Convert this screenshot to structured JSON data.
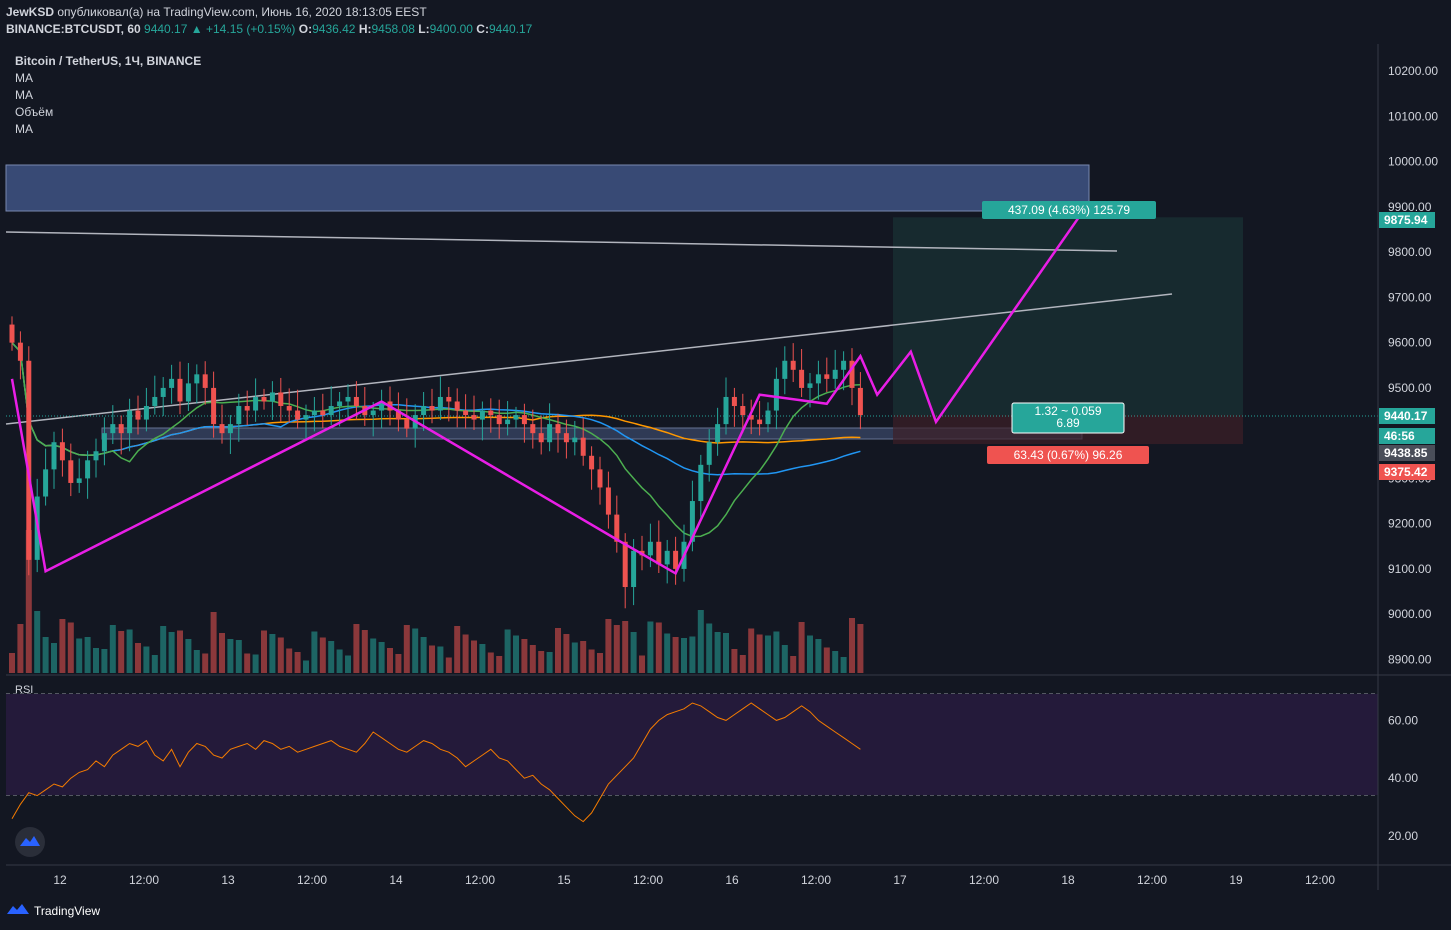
{
  "header": {
    "author": "JewKSD",
    "published_text": "опубликовал(а) на TradingView.com, Июнь 16, 2020 18:13:05 EEST",
    "symbol": "BINANCE:BTCUSDT, 60",
    "last": "9440.17",
    "change": "+14.15 (+0.15%)",
    "o_label": "O:",
    "o": "9436.42",
    "h_label": "H:",
    "h": "9458.08",
    "l_label": "L:",
    "l": "9400.00",
    "c_label": "C:",
    "c": "9440.17"
  },
  "legend": {
    "title": "Bitcoin / TetherUS, 1Ч, BINANCE",
    "items": [
      "MA",
      "MA",
      "Объём",
      "MA"
    ]
  },
  "rsi_label": "RSI",
  "footer_brand": "TradingView",
  "colors": {
    "background": "#131722",
    "up": "#26a69a",
    "down": "#ef5350",
    "ma_orange": "#ff9800",
    "ma_blue": "#2196f3",
    "ma_green": "#4caf50",
    "pattern": "#e91ee6",
    "rsi_line": "#f57c00",
    "rsi_band": "#241a3a",
    "zone": "#3a4d7a"
  },
  "chart_data": {
    "type": "candlestick",
    "price_axis": {
      "ticks": [
        "10200.00",
        "10100.00",
        "10000.00",
        "9900.00",
        "9800.00",
        "9700.00",
        "9600.00",
        "9500.00",
        "9400.00",
        "9300.00",
        "9200.00",
        "9100.00",
        "9000.00",
        "8900.00"
      ],
      "ylim": [
        8870,
        10260
      ]
    },
    "price_labels": [
      {
        "text": "9875.94",
        "kind": "target"
      },
      {
        "text": "9440.17",
        "kind": "last"
      },
      {
        "text": "46:56",
        "kind": "timer"
      },
      {
        "text": "9438.85",
        "kind": "ma"
      },
      {
        "text": "9375.42",
        "kind": "stop"
      }
    ],
    "time_axis": {
      "ticks": [
        "12",
        "12:00",
        "13",
        "12:00",
        "14",
        "12:00",
        "15",
        "12:00",
        "16",
        "12:00",
        "17",
        "12:00",
        "18",
        "12:00",
        "19",
        "12:00"
      ]
    },
    "position": {
      "target_label": "437.09 (4.63%) 125.79",
      "ratio_label": "1.32 ~ 0.059",
      "qty_label": "6.89",
      "stop_label": "63.43 (0.67%) 96.26",
      "entry": 9440,
      "target": 9877,
      "stop": 9376
    },
    "rsi_axis": {
      "ticks": [
        "60.00",
        "40.00",
        "20.00"
      ],
      "upper": 70,
      "lower": 30
    },
    "pattern_points": [
      [
        9520,
        0
      ],
      [
        9095,
        4
      ],
      [
        9470,
        44
      ],
      [
        9165,
        72
      ],
      [
        9090,
        79
      ],
      [
        9485,
        89
      ],
      [
        9465,
        97
      ],
      [
        9570,
        101
      ],
      [
        9485,
        103
      ],
      [
        9580,
        107
      ],
      [
        9425,
        110
      ],
      [
        9877,
        127
      ]
    ],
    "candles_close": [
      9600,
      9560,
      9120,
      9260,
      9320,
      9380,
      9340,
      9290,
      9300,
      9340,
      9360,
      9400,
      9420,
      9400,
      9450,
      9430,
      9460,
      9480,
      9500,
      9520,
      9470,
      9510,
      9530,
      9500,
      9420,
      9400,
      9420,
      9460,
      9450,
      9480,
      9470,
      9490,
      9460,
      9450,
      9430,
      9440,
      9450,
      9440,
      9460,
      9470,
      9480,
      9460,
      9440,
      9450,
      9470,
      9450,
      9430,
      9410,
      9440,
      9460,
      9450,
      9480,
      9470,
      9450,
      9440,
      9430,
      9450,
      9440,
      9420,
      9430,
      9440,
      9420,
      9400,
      9380,
      9420,
      9400,
      9380,
      9390,
      9350,
      9320,
      9280,
      9220,
      9160,
      9060,
      9140,
      9130,
      9160,
      9110,
      9140,
      9100,
      9160,
      9250,
      9330,
      9380,
      9420,
      9480,
      9460,
      9440,
      9430,
      9420,
      9450,
      9520,
      9560,
      9540,
      9500,
      9510,
      9530,
      9520,
      9540,
      9560,
      9500,
      9440
    ],
    "rsi_values": [
      26,
      31,
      35,
      34,
      36,
      38,
      37,
      40,
      42,
      43,
      46,
      44,
      48,
      50,
      52,
      51,
      53,
      48,
      46,
      50,
      44,
      49,
      52,
      51,
      48,
      47,
      50,
      51,
      52,
      50,
      53,
      52,
      50,
      51,
      49,
      50,
      51,
      52,
      53,
      51,
      50,
      49,
      52,
      56,
      54,
      52,
      50,
      49,
      51,
      53,
      52,
      50,
      49,
      47,
      44,
      46,
      48,
      50,
      47,
      46,
      43,
      40,
      41,
      38,
      36,
      33,
      30,
      27,
      25,
      28,
      33,
      38,
      41,
      44,
      47,
      52,
      57,
      60,
      62,
      63,
      64,
      66,
      65,
      63,
      61,
      60,
      62,
      64,
      66,
      64,
      62,
      60,
      61,
      63,
      65,
      63,
      60,
      58,
      56,
      54,
      52,
      50
    ]
  }
}
